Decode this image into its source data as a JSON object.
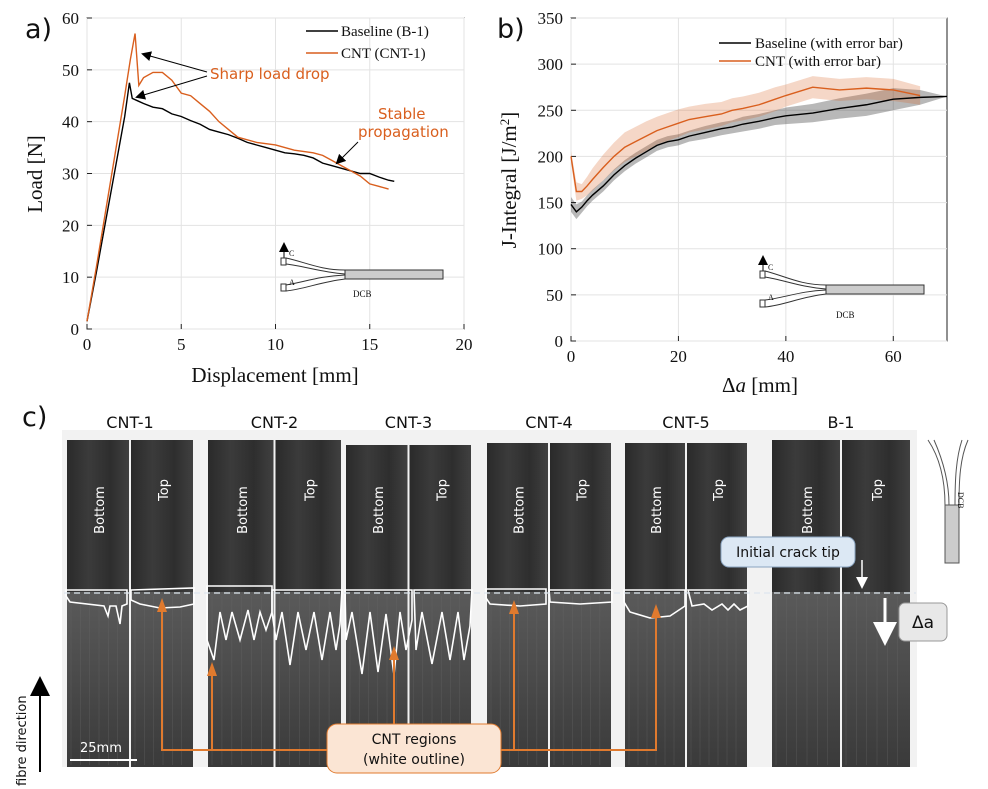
{
  "chart_data": [
    {
      "panel": "a)",
      "type": "line",
      "xlabel": "Displacement [mm]",
      "ylabel": "Load [N]",
      "xlim": [
        0,
        20
      ],
      "ylim": [
        0,
        60
      ],
      "xticks": [
        "0",
        "5",
        "10",
        "15",
        "20"
      ],
      "yticks": [
        "0",
        "10",
        "20",
        "30",
        "40",
        "50",
        "60"
      ],
      "grid": true,
      "legend_position": "top-right",
      "series": [
        {
          "name": "Baseline (B-1)",
          "color": "#000000",
          "x": [
            0,
            0.5,
            1.0,
            1.5,
            2.0,
            2.25,
            2.4,
            2.7,
            3.0,
            3.5,
            4.0,
            4.5,
            5.0,
            5.5,
            6.0,
            6.5,
            7.0,
            7.5,
            8.0,
            8.5,
            9.0,
            9.5,
            10.0,
            10.5,
            11.0,
            11.5,
            12.0,
            12.5,
            13.0,
            13.5,
            14.0,
            14.5,
            15.0,
            15.5,
            16.0,
            16.3
          ],
          "values": [
            1.5,
            11,
            21,
            31,
            41,
            47.5,
            44.5,
            44,
            43.5,
            42.8,
            42.5,
            41.5,
            41,
            40.2,
            39.5,
            38.5,
            38,
            37.5,
            36.8,
            36,
            35.5,
            35,
            34.5,
            34,
            33.8,
            33.5,
            33,
            32,
            31.5,
            31,
            30.5,
            30,
            30,
            29.3,
            28.7,
            28.5
          ]
        },
        {
          "name": "CNT (CNT-1)",
          "color": "#D95F1E",
          "x": [
            0,
            0.5,
            1.0,
            1.5,
            2.0,
            2.3,
            2.55,
            2.75,
            3.0,
            3.5,
            4.0,
            4.5,
            5.0,
            5.5,
            6.0,
            6.5,
            7.0,
            7.5,
            8.0,
            9.0,
            10.0,
            11.0,
            12.0,
            12.5,
            13.0,
            13.5,
            14.0,
            14.5,
            15.0,
            15.5,
            16.0
          ],
          "values": [
            1.5,
            12,
            23,
            34,
            45,
            52,
            57,
            47,
            48.5,
            49.5,
            49.5,
            48,
            45.5,
            45,
            43.5,
            42,
            40,
            38.5,
            37,
            36,
            35.5,
            34.5,
            34,
            33.5,
            32.5,
            31.5,
            30.5,
            29.5,
            28,
            27.5,
            27
          ]
        }
      ],
      "annotations": [
        "Sharp load drop",
        "Stable propagation"
      ],
      "inset": {
        "labels": [
          "C",
          "A",
          "DCB"
        ]
      }
    },
    {
      "panel": "b)",
      "type": "line",
      "xlabel": "Δa [mm]",
      "ylabel": "J-Integral [J/m²]",
      "xlim": [
        0,
        70
      ],
      "ylim": [
        0,
        350
      ],
      "xticks": [
        "0",
        "20",
        "40",
        "60"
      ],
      "yticks": [
        "0",
        "50",
        "100",
        "150",
        "200",
        "250",
        "300",
        "350"
      ],
      "grid": true,
      "legend_position": "top-right",
      "series": [
        {
          "name": "Baseline (with error bar)",
          "color": "#000000",
          "x": [
            0,
            1,
            2,
            3,
            4,
            6,
            8,
            10,
            12,
            14,
            16,
            18,
            20,
            22,
            25,
            28,
            30,
            32,
            35,
            38,
            40,
            45,
            50,
            55,
            60,
            65,
            70
          ],
          "values": [
            148,
            140,
            145,
            152,
            158,
            168,
            180,
            190,
            198,
            205,
            212,
            216,
            218,
            222,
            226,
            230,
            232,
            235,
            238,
            242,
            244,
            247,
            252,
            256,
            262,
            264,
            265
          ],
          "error": [
            8,
            8,
            6,
            6,
            6,
            6,
            6,
            6,
            6,
            6,
            6,
            6,
            6,
            6,
            7,
            7,
            7,
            8,
            8,
            8,
            9,
            10,
            11,
            12,
            12,
            8,
            0
          ]
        },
        {
          "name": "CNT (with error bar)",
          "color": "#D95F1E",
          "x": [
            0,
            1,
            2,
            3,
            4,
            6,
            8,
            10,
            12,
            14,
            16,
            18,
            20,
            22,
            25,
            28,
            30,
            32,
            35,
            38,
            40,
            45,
            50,
            55,
            60,
            65
          ],
          "values": [
            200,
            162,
            162,
            168,
            175,
            188,
            200,
            210,
            216,
            222,
            228,
            232,
            236,
            240,
            243,
            246,
            250,
            252,
            256,
            262,
            266,
            275,
            272,
            274,
            272,
            266
          ],
          "error": [
            6,
            10,
            8,
            10,
            12,
            14,
            15,
            16,
            16,
            16,
            15,
            15,
            15,
            14,
            14,
            13,
            13,
            13,
            13,
            13,
            12,
            12,
            12,
            12,
            12,
            10
          ]
        }
      ],
      "inset": {
        "labels": [
          "C",
          "A",
          "DCB"
        ]
      }
    }
  ],
  "panel_c": {
    "label": "c)",
    "specimens": [
      "CNT-1",
      "CNT-2",
      "CNT-3",
      "CNT-4",
      "CNT-5",
      "B-1"
    ],
    "face_bottom": "Bottom",
    "face_top": "Top",
    "initial_crack_label": "Initial crack tip",
    "delta_a_label": "Δa",
    "fibre_direction": "fibre direction",
    "scale_bar": "25mm",
    "cnt_regions_line1": "CNT regions",
    "cnt_regions_line2": "(white outline)",
    "inset_label": "DCB"
  },
  "colors": {
    "orange": "#D95F1E",
    "black": "#000000"
  }
}
